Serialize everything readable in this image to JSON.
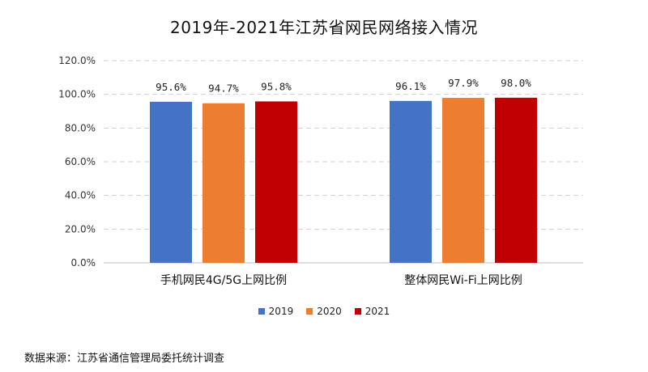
{
  "chart_data": {
    "type": "bar",
    "title": "2019年-2021年江苏省网民网络接入情况",
    "categories": [
      "手机网民4G/5G上网比例",
      "整体网民Wi-Fi上网比例"
    ],
    "series": [
      {
        "name": "2019",
        "color": "#4472C4",
        "values": [
          95.6,
          96.1
        ]
      },
      {
        "name": "2020",
        "color": "#ED7D31",
        "values": [
          94.7,
          97.9
        ]
      },
      {
        "name": "2021",
        "color": "#C00000",
        "values": [
          95.8,
          98.0
        ]
      }
    ],
    "data_labels": [
      [
        "95.6%",
        "94.7%",
        "95.8%"
      ],
      [
        "96.1%",
        "97.9%",
        "98.0%"
      ]
    ],
    "yticks": [
      "0.0%",
      "20.0%",
      "40.0%",
      "60.0%",
      "80.0%",
      "100.0%",
      "120.0%"
    ],
    "ylim": [
      0,
      120
    ],
    "grid": true,
    "legend_position": "bottom",
    "xlabel": "",
    "ylabel": ""
  },
  "source": "数据来源：江苏省通信管理局委托统计调查"
}
